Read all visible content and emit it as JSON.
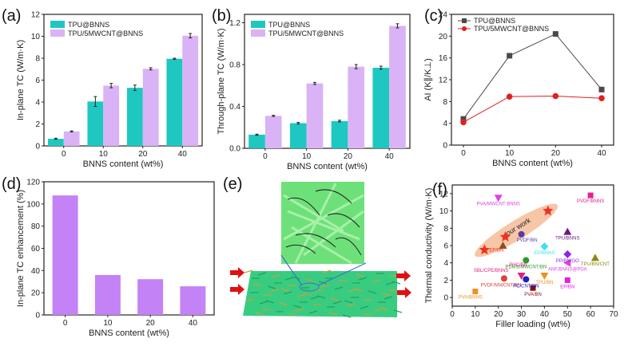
{
  "chart_data": [
    {
      "id": "a",
      "panel_label": "(a)",
      "type": "bar",
      "categories": [
        "0",
        "10",
        "20",
        "40"
      ],
      "xlabel": "BNNS content (wt%)",
      "ylabel": "In-plane TC (W/m·K)",
      "ylim": [
        0,
        12
      ],
      "yticks": [
        0,
        2,
        4,
        6,
        8,
        10,
        12
      ],
      "legend_position": "top-left",
      "series": [
        {
          "name": "TPU@BNNS",
          "color": "#1ec8c0",
          "values": [
            0.65,
            4.05,
            5.3,
            7.95
          ],
          "errors": [
            0.05,
            0.45,
            0.25,
            0.05
          ]
        },
        {
          "name": "TPU/5MWCNT@BNNS",
          "color": "#d9b3f5",
          "values": [
            1.32,
            5.5,
            7.03,
            10.05
          ],
          "errors": [
            0.05,
            0.2,
            0.1,
            0.2
          ]
        }
      ]
    },
    {
      "id": "b",
      "panel_label": "(b)",
      "type": "bar",
      "categories": [
        "0",
        "10",
        "20",
        "40"
      ],
      "xlabel": "BNNS content (wt%)",
      "ylabel": "Through-plane TC (W/m·K)",
      "ylim": [
        0,
        1.28
      ],
      "yticks": [
        0.0,
        0.4,
        0.8,
        1.2
      ],
      "legend_position": "top-left",
      "series": [
        {
          "name": "TPU@BNNS",
          "color": "#1ec8c0",
          "values": [
            0.13,
            0.24,
            0.26,
            0.77
          ],
          "errors": [
            0.005,
            0.008,
            0.008,
            0.015
          ]
        },
        {
          "name": "TPU/5MWCNT@BNNS",
          "color": "#d9b3f5",
          "values": [
            0.31,
            0.62,
            0.78,
            1.17
          ],
          "errors": [
            0.005,
            0.01,
            0.02,
            0.02
          ]
        }
      ]
    },
    {
      "id": "c",
      "panel_label": "(c)",
      "type": "line",
      "x": [
        "0",
        "10",
        "20",
        "40"
      ],
      "xlabel": "BNNS content (wt%)",
      "ylabel": "AI (K∥/K⊥)",
      "ylim": [
        0,
        24
      ],
      "yticks": [
        0,
        4,
        8,
        12,
        16,
        20,
        24
      ],
      "legend_position": "top-left",
      "series": [
        {
          "name": "TPU@BNNS",
          "color": "#4a4a4a",
          "marker": "square",
          "values": [
            4.8,
            16.4,
            20.4,
            10.2
          ]
        },
        {
          "name": "TPU/5MWCNT@BNNS",
          "color": "#e02020",
          "marker": "circle",
          "values": [
            4.2,
            8.9,
            9.0,
            8.6
          ]
        }
      ]
    },
    {
      "id": "d",
      "panel_label": "(d)",
      "type": "bar",
      "categories": [
        "0",
        "10",
        "20",
        "40"
      ],
      "xlabel": "BNNS content (wt%)",
      "ylabel": "In-plane TC enhancement (%)",
      "ylim": [
        0,
        120
      ],
      "yticks": [
        0,
        20,
        40,
        60,
        80,
        100,
        120
      ],
      "series": [
        {
          "name": "enhancement",
          "color": "#c382f5",
          "values": [
            107.7,
            36.0,
            32.2,
            25.8
          ]
        }
      ]
    },
    {
      "id": "f",
      "panel_label": "(f)",
      "type": "scatter",
      "xlabel": "Filler loading (wt%)",
      "ylabel": "Thermal conductivity (W/m·K)",
      "xlim": [
        0,
        70
      ],
      "ylim": [
        -1,
        13
      ],
      "xticks": [
        0,
        10,
        20,
        30,
        40,
        50,
        60,
        70
      ],
      "yticks": [
        0,
        2,
        4,
        6,
        8,
        10,
        12
      ],
      "highlight_label": "our work",
      "points": [
        {
          "label": "PVA/MWCNT BNNS",
          "x": 20,
          "y": 11.5,
          "color": "#e040e0",
          "marker": "triangle-down"
        },
        {
          "label": "PVDF/BNNS",
          "x": 60,
          "y": 11.8,
          "color": "#e8208c",
          "marker": "square"
        },
        {
          "label": "our work 40",
          "x": 41.5,
          "y": 10.0,
          "color": "#f03020",
          "marker": "star"
        },
        {
          "label": "our work 20",
          "x": 23,
          "y": 7.0,
          "color": "#f03020",
          "marker": "star"
        },
        {
          "label": "EP/BN",
          "x": 14,
          "y": 5.5,
          "color": "#f03020",
          "marker": "star"
        },
        {
          "label": "",
          "x": 22,
          "y": 6.0,
          "color": "#8a5020",
          "marker": "triangle-up"
        },
        {
          "label": "PVDF/BN",
          "x": 30,
          "y": 7.3,
          "color": "#5a3aa8",
          "marker": "sphere"
        },
        {
          "label": "TPU/BNNS",
          "x": 50,
          "y": 7.6,
          "color": "#6a1a7a",
          "marker": "triangle-up"
        },
        {
          "label": "EP/BNNS",
          "x": 40,
          "y": 5.9,
          "color": "#40e0f0",
          "marker": "diamond"
        },
        {
          "label": "PP/BN/GO",
          "x": 50,
          "y": 5.0,
          "color": "#8a2ae0",
          "marker": "diamond"
        },
        {
          "label": "TPU/BN/CNT",
          "x": 62,
          "y": 4.6,
          "color": "#8a8a10",
          "marker": "triangle-up"
        },
        {
          "label": "ANF/BNNS@PDA",
          "x": 50,
          "y": 4.0,
          "color": "#e040e0",
          "marker": "triangle-left"
        },
        {
          "label": "PDMS/MWCNT/BN",
          "x": 32,
          "y": 4.3,
          "color": "#2a9a2a",
          "marker": "sphere"
        },
        {
          "label": "PHC/BN",
          "x": 30,
          "y": 2.5,
          "color": "#e02080",
          "marker": "triangle-down"
        },
        {
          "label": "SBL/CPE/BNNS",
          "x": 30,
          "y": 2.5,
          "color": "#e02080",
          "marker": "none"
        },
        {
          "label": "TPU/BN",
          "x": 40,
          "y": 2.5,
          "color": "#f09020",
          "marker": "triangle-down"
        },
        {
          "label": "PVDF/MWCNT/BN",
          "x": 22.5,
          "y": 2.2,
          "color": "#e04040",
          "marker": "sphere"
        },
        {
          "label": "PC/CNT/BN",
          "x": 32,
          "y": 2.1,
          "color": "#2020c0",
          "marker": "sphere"
        },
        {
          "label": "EP/BN",
          "x": 50,
          "y": 2.0,
          "color": "#e020e0",
          "marker": "square"
        },
        {
          "label": "PVA/BN",
          "x": 35,
          "y": 1.1,
          "color": "#801010",
          "marker": "square"
        },
        {
          "label": "PVA/BNNS",
          "x": 10,
          "y": 0.7,
          "color": "#f09020",
          "marker": "square"
        }
      ]
    }
  ],
  "panel_e": {
    "panel_label": "(e)",
    "arrow_color": "#e01010",
    "zoom_line_color": "#4070d0"
  }
}
